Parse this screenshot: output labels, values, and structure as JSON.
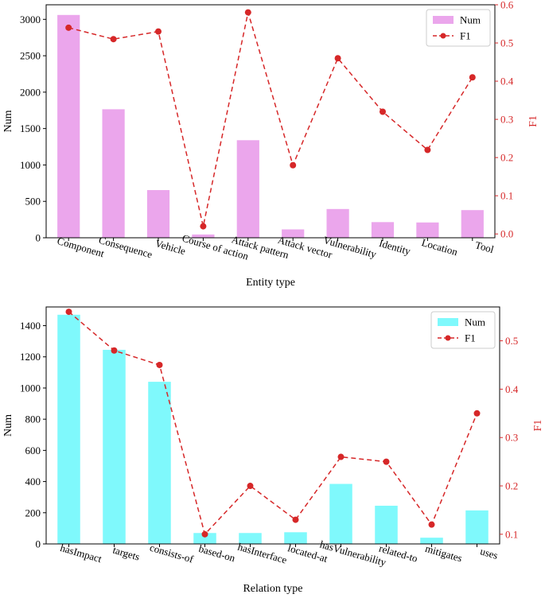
{
  "colors": {
    "top_bar": "#eba6ec",
    "bottom_bar": "#7ff9fc",
    "f1_line": "#d62728",
    "axis": "#000000"
  },
  "chart_data": [
    {
      "type": "bar",
      "title": "",
      "xlabel": "Entity type",
      "ylabel": "Num",
      "y2label": "F1",
      "ylim": [
        0,
        3200
      ],
      "y2lim": [
        -0.01,
        0.6
      ],
      "yticks": [
        0,
        500,
        1000,
        1500,
        2000,
        2500,
        3000
      ],
      "y2ticks": [
        0.0,
        0.1,
        0.2,
        0.3,
        0.4,
        0.5,
        0.6
      ],
      "legend": {
        "position": "top-right",
        "entries": [
          "Num",
          "F1"
        ]
      },
      "categories": [
        "Component",
        "Consequence",
        "Vehicle",
        "Course of action",
        "Attack pattern",
        "Attack vector",
        "Vulnerability",
        "Identity",
        "Location",
        "Tool"
      ],
      "series": [
        {
          "name": "Num",
          "type": "bar",
          "axis": "left",
          "values": [
            3060,
            1765,
            655,
            45,
            1340,
            115,
            395,
            215,
            210,
            380
          ]
        },
        {
          "name": "F1",
          "type": "line",
          "axis": "right",
          "style": "dashed",
          "marker": "circle",
          "values": [
            0.54,
            0.51,
            0.53,
            0.02,
            0.58,
            0.18,
            0.46,
            0.32,
            0.22,
            0.41
          ]
        }
      ]
    },
    {
      "type": "bar",
      "title": "",
      "xlabel": "Relation type",
      "ylabel": "Num",
      "y2label": "F1",
      "ylim": [
        0,
        1520
      ],
      "y2lim": [
        0.08,
        0.57
      ],
      "yticks": [
        0,
        200,
        400,
        600,
        800,
        1000,
        1200,
        1400
      ],
      "y2ticks": [
        0.1,
        0.2,
        0.3,
        0.4,
        0.5
      ],
      "legend": {
        "position": "top-right",
        "entries": [
          "Num",
          "F1"
        ]
      },
      "categories": [
        "hasImpact",
        "targets",
        "consists-of",
        "based-on",
        "hasInterface",
        "located-at",
        "hasVulnerability",
        "related-to",
        "mitigates",
        "uses"
      ],
      "series": [
        {
          "name": "Num",
          "type": "bar",
          "axis": "left",
          "values": [
            1470,
            1245,
            1040,
            70,
            70,
            75,
            385,
            245,
            40,
            215
          ]
        },
        {
          "name": "F1",
          "type": "line",
          "axis": "right",
          "style": "dashed",
          "marker": "circle",
          "values": [
            0.56,
            0.48,
            0.45,
            0.1,
            0.2,
            0.13,
            0.26,
            0.25,
            0.12,
            0.35
          ]
        }
      ]
    }
  ]
}
